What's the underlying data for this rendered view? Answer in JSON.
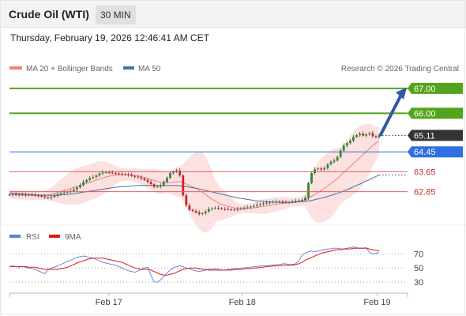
{
  "header": {
    "title": "Crude Oil (WTI)",
    "timeframe": "30 MIN",
    "timestamp": "Thursday, February 19, 2026 12:46:41 AM CET"
  },
  "colors": {
    "ma20": "#f08080",
    "ma50": "#4a6fa5",
    "band_fill": "#fbd7d7",
    "candle_up": "#2e8b2e",
    "candle_down": "#cc2222",
    "resistance": "#55a31b",
    "pivot": "#2f6fe0",
    "support": "#e06060",
    "last": "#333333",
    "rsi": "#5b7ed8",
    "rsi_ma": "#e01818",
    "arrow": "#2f5aa0"
  },
  "legend": {
    "ma20": "MA 20 + Bollinger Bands",
    "ma50": "MA 50",
    "copyright": "Research © 2026 Trading Central"
  },
  "rsi_legend": {
    "rsi": "RSI",
    "ma": "9MA"
  },
  "chart_data": [
    {
      "type": "candlestick",
      "x_ticks": [
        "Feb 17",
        "Feb 18",
        "Feb 19"
      ],
      "ylim": [
        61.6,
        67.6
      ],
      "levels": [
        {
          "label": "67.00",
          "value": 67.0,
          "kind": "resistance"
        },
        {
          "label": "66.00",
          "value": 66.0,
          "kind": "resistance"
        },
        {
          "label": "65.11",
          "value": 65.11,
          "kind": "last"
        },
        {
          "label": "64.45",
          "value": 64.45,
          "kind": "pivot"
        },
        {
          "label": "63.65",
          "value": 63.65,
          "kind": "support"
        },
        {
          "label": "62.85",
          "value": 62.85,
          "kind": "support"
        }
      ],
      "close": [
        62.73,
        62.74,
        62.72,
        62.75,
        62.73,
        62.71,
        62.74,
        62.72,
        62.7,
        62.68,
        62.66,
        62.62,
        62.6,
        62.64,
        62.68,
        62.75,
        62.8,
        62.82,
        62.84,
        62.88,
        62.94,
        63.02,
        63.12,
        63.24,
        63.32,
        63.4,
        63.44,
        63.5,
        63.58,
        63.62,
        63.63,
        63.62,
        63.6,
        63.58,
        63.56,
        63.55,
        63.54,
        63.52,
        63.48,
        63.45,
        63.42,
        63.38,
        63.32,
        63.24,
        63.15,
        63.05,
        63.05,
        63.1,
        63.25,
        63.4,
        63.6,
        63.65,
        63.7,
        63.5,
        62.7,
        62.3,
        62.12,
        62.08,
        62.02,
        61.95,
        61.98,
        62.05,
        62.15,
        62.18,
        62.2,
        62.18,
        62.16,
        62.15,
        62.14,
        62.13,
        62.12,
        62.15,
        62.18,
        62.2,
        62.22,
        62.25,
        62.28,
        62.32,
        62.35,
        62.38,
        62.4,
        62.42,
        62.44,
        62.45,
        62.46,
        62.44,
        62.42,
        62.43,
        62.46,
        62.48,
        62.5,
        62.52,
        62.6,
        63.2,
        63.6,
        63.75,
        63.78,
        63.74,
        63.8,
        63.95,
        64.05,
        64.1,
        64.25,
        64.5,
        64.7,
        64.8,
        64.9,
        65.05,
        65.12,
        65.18,
        65.1,
        65.15,
        65.2,
        65.08,
        65.04,
        65.11
      ],
      "ma20": [
        62.75,
        62.74,
        62.73,
        62.72,
        62.71,
        62.71,
        62.7,
        62.7,
        62.7,
        62.7,
        62.7,
        62.7,
        62.72,
        62.75,
        62.78,
        62.82,
        62.86,
        62.9,
        62.94,
        62.98,
        63.02,
        63.06,
        63.1,
        63.14,
        63.18,
        63.22,
        63.27,
        63.32,
        63.36,
        63.4,
        63.44,
        63.47,
        63.5,
        63.52,
        63.53,
        63.54,
        63.54,
        63.53,
        63.52,
        63.5,
        63.48,
        63.45,
        63.42,
        63.38,
        63.34,
        63.3,
        63.26,
        63.23,
        63.22,
        63.22,
        63.22,
        63.23,
        63.25,
        63.26,
        63.22,
        63.16,
        63.1,
        63.04,
        62.98,
        62.9,
        62.82,
        62.73,
        62.64,
        62.55,
        62.47,
        62.4,
        62.34,
        62.3,
        62.26,
        62.23,
        62.2,
        62.18,
        62.17,
        62.17,
        62.18,
        62.19,
        62.2,
        62.22,
        62.24,
        62.26,
        62.28,
        62.3,
        62.32,
        62.34,
        62.36,
        62.38,
        62.4,
        62.42,
        62.43,
        62.44,
        62.45,
        62.46,
        62.5,
        62.58,
        62.66,
        62.74,
        62.82,
        62.9,
        62.98,
        63.08,
        63.18,
        63.28,
        63.38,
        63.5,
        63.62,
        63.74,
        63.86,
        63.98,
        64.1,
        64.22,
        64.34,
        64.46,
        64.58,
        64.7,
        64.8,
        64.88
      ],
      "ma50": [
        62.8,
        62.79,
        62.78,
        62.77,
        62.76,
        62.75,
        62.74,
        62.73,
        62.72,
        62.71,
        62.7,
        62.7,
        62.7,
        62.7,
        62.7,
        62.71,
        62.72,
        62.73,
        62.74,
        62.75,
        62.77,
        62.79,
        62.81,
        62.83,
        62.85,
        62.87,
        62.89,
        62.91,
        62.93,
        62.95,
        62.97,
        62.99,
        63.01,
        63.03,
        63.04,
        63.05,
        63.06,
        63.07,
        63.08,
        63.09,
        63.1,
        63.1,
        63.1,
        63.1,
        63.1,
        63.1,
        63.1,
        63.1,
        63.1,
        63.1,
        63.1,
        63.1,
        63.1,
        63.09,
        63.07,
        63.05,
        63.03,
        63.01,
        62.99,
        62.96,
        62.93,
        62.9,
        62.87,
        62.84,
        62.81,
        62.78,
        62.75,
        62.72,
        62.69,
        62.66,
        62.63,
        62.6,
        62.58,
        62.56,
        62.54,
        62.52,
        62.5,
        62.48,
        62.47,
        62.46,
        62.45,
        62.44,
        62.43,
        62.43,
        62.42,
        62.42,
        62.42,
        62.42,
        62.42,
        62.43,
        62.44,
        62.45,
        62.46,
        62.48,
        62.5,
        62.53,
        62.56,
        62.59,
        62.62,
        62.66,
        62.7,
        62.74,
        62.78,
        62.83,
        62.88,
        62.93,
        62.98,
        63.04,
        63.1,
        63.16,
        63.22,
        63.28,
        63.34,
        63.4,
        63.46,
        63.52
      ]
    },
    {
      "type": "line",
      "name": "RSI",
      "y_ticks": [
        70,
        50,
        30
      ],
      "ylim": [
        20,
        85
      ],
      "series": [
        {
          "name": "RSI",
          "values": [
            52,
            53,
            52,
            51,
            52,
            51,
            50,
            49,
            48,
            46,
            44,
            42,
            48,
            50,
            51,
            53,
            55,
            57,
            59,
            61,
            63,
            65,
            66,
            67,
            66,
            65,
            64,
            62,
            60,
            58,
            57,
            56,
            55,
            54,
            52,
            50,
            48,
            46,
            45,
            44,
            46,
            48,
            50,
            51,
            40,
            30,
            30,
            33,
            38,
            43,
            47,
            50,
            52,
            53,
            52,
            50,
            49,
            47,
            46,
            45,
            46,
            47,
            48,
            48,
            49,
            48,
            47,
            47,
            48,
            48,
            49,
            49,
            50,
            50,
            51,
            51,
            52,
            52,
            53,
            53,
            53,
            54,
            54,
            55,
            55,
            56,
            56,
            55,
            55,
            56,
            60,
            68,
            71,
            73,
            74,
            73,
            74,
            75,
            76,
            77,
            77,
            78,
            78,
            77,
            77,
            78,
            79,
            80,
            79,
            78,
            78,
            79,
            72,
            70,
            71,
            72
          ]
        },
        {
          "name": "9MA",
          "values": [
            52,
            52,
            52,
            52,
            52,
            52,
            51,
            51,
            51,
            50,
            49,
            48,
            48,
            48,
            48,
            48,
            49,
            50,
            51,
            53,
            55,
            57,
            59,
            60,
            62,
            63,
            64,
            64,
            64,
            64,
            63,
            62,
            61,
            60,
            59,
            58,
            56,
            54,
            52,
            50,
            49,
            48,
            48,
            48,
            47,
            45,
            43,
            41,
            40,
            40,
            41,
            42,
            44,
            46,
            48,
            49,
            50,
            50,
            50,
            49,
            48,
            48,
            47,
            47,
            47,
            47,
            47,
            47,
            47,
            47,
            48,
            48,
            48,
            49,
            49,
            49,
            50,
            50,
            51,
            51,
            52,
            52,
            53,
            53,
            53,
            54,
            54,
            54,
            54,
            55,
            56,
            58,
            61,
            63,
            65,
            67,
            69,
            71,
            72,
            73,
            74,
            75,
            76,
            76,
            77,
            77,
            77,
            78,
            78,
            78,
            78,
            78,
            77,
            76,
            75,
            74
          ]
        }
      ]
    }
  ]
}
